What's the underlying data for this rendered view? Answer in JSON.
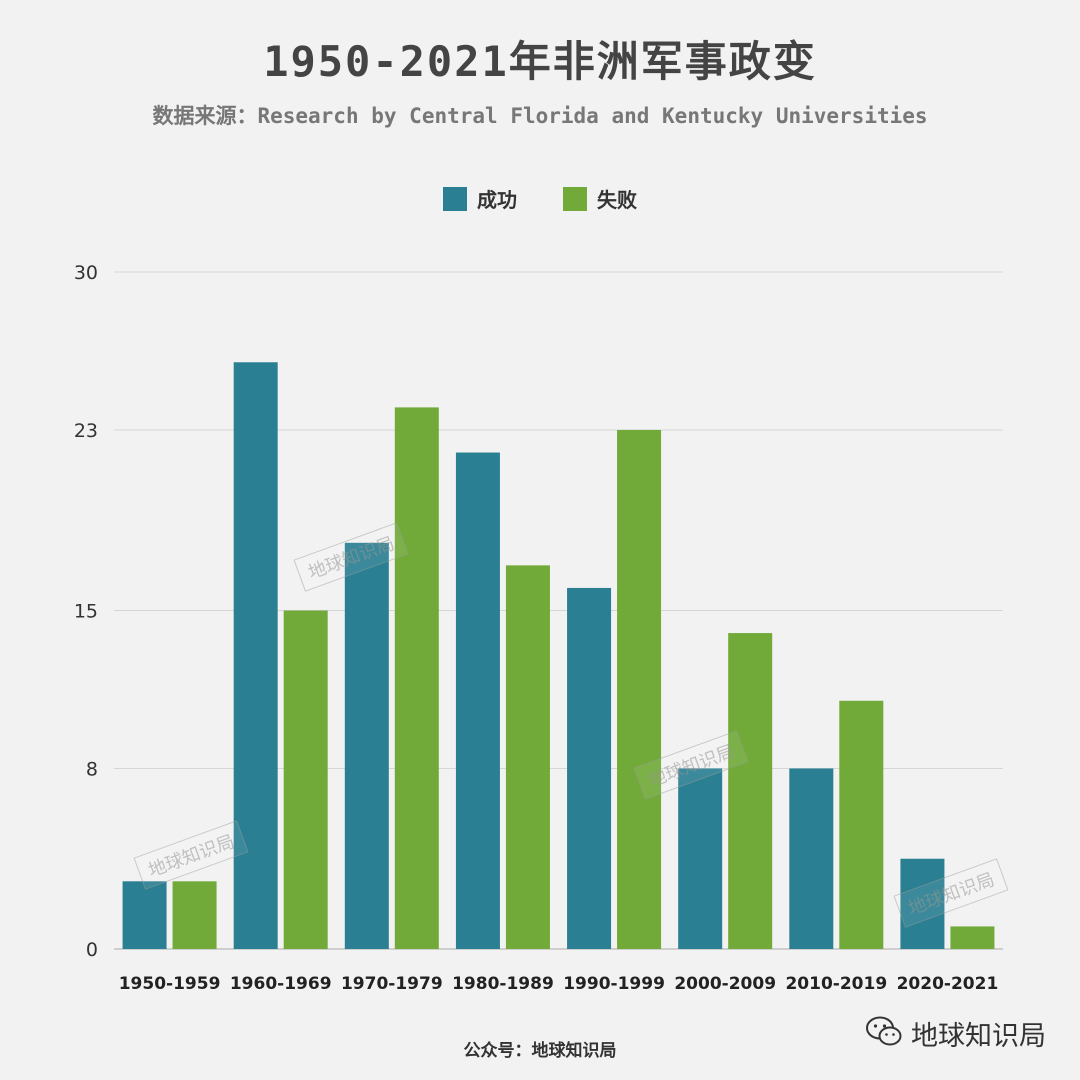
{
  "title": "1950-2021年非洲军事政变",
  "subtitle": "数据来源：Research by Central Florida and Kentucky Universities",
  "legend": [
    {
      "label": "成功",
      "color": "#2b7f92"
    },
    {
      "label": "失败",
      "color": "#71aa39"
    }
  ],
  "footer": "公众号：地球知识局",
  "brand": "地球知识局",
  "watermark": "地球知识局",
  "chart_data": {
    "type": "bar",
    "categories": [
      "1950-1959",
      "1960-1969",
      "1970-1979",
      "1980-1989",
      "1990-1999",
      "2000-2009",
      "2010-2019",
      "2020-2021"
    ],
    "series": [
      {
        "name": "成功",
        "color": "#2b7f92",
        "values": [
          3,
          26,
          18,
          22,
          16,
          8,
          8,
          4
        ]
      },
      {
        "name": "失败",
        "color": "#71aa39",
        "values": [
          3,
          15,
          24,
          17,
          23,
          14,
          11,
          1
        ]
      }
    ],
    "yticks": [
      "0",
      "8",
      "15",
      "23",
      "30"
    ],
    "ylim": [
      0,
      30
    ],
    "grid": true,
    "legend_position": "top"
  }
}
